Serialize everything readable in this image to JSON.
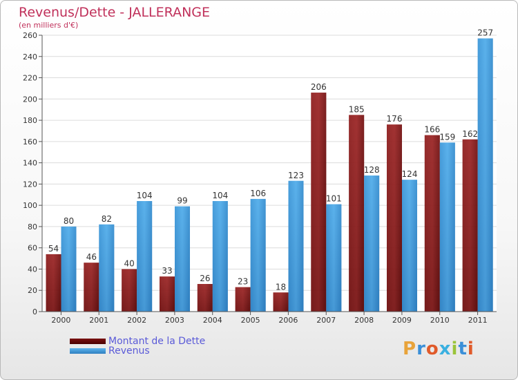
{
  "chart_data": {
    "type": "bar",
    "title": "Revenus/Dette - JALLERANGE",
    "subtitle": "(en milliers d'€)",
    "categories": [
      "2000",
      "2001",
      "2002",
      "2003",
      "2004",
      "2005",
      "2006",
      "2007",
      "2008",
      "2009",
      "2010",
      "2011"
    ],
    "series": [
      {
        "name": "Montant de la Dette",
        "color": "#7a1010",
        "values": [
          54,
          46,
          40,
          33,
          26,
          23,
          18,
          206,
          185,
          176,
          166,
          162
        ]
      },
      {
        "name": "Revenus",
        "color": "#4ba3e3",
        "values": [
          80,
          82,
          104,
          99,
          104,
          106,
          123,
          101,
          128,
          124,
          159,
          257
        ]
      }
    ],
    "ylim": [
      0,
      260
    ],
    "yticks": [
      0,
      20,
      40,
      60,
      80,
      100,
      120,
      140,
      160,
      180,
      200,
      220,
      240,
      260
    ],
    "grid": true,
    "legend_position": "bottom-left"
  },
  "legend": {
    "dette_label": "Montant de la Dette",
    "revenus_label": "Revenus"
  },
  "logo": {
    "letters": [
      "P",
      "r",
      "o",
      "x",
      "i",
      "t",
      "i"
    ],
    "colors": [
      "#e8a33a",
      "#3a8fd8",
      "#e05a2a",
      "#3ab0e0",
      "#9ac43a",
      "#3a8fd8",
      "#e05a2a"
    ]
  }
}
